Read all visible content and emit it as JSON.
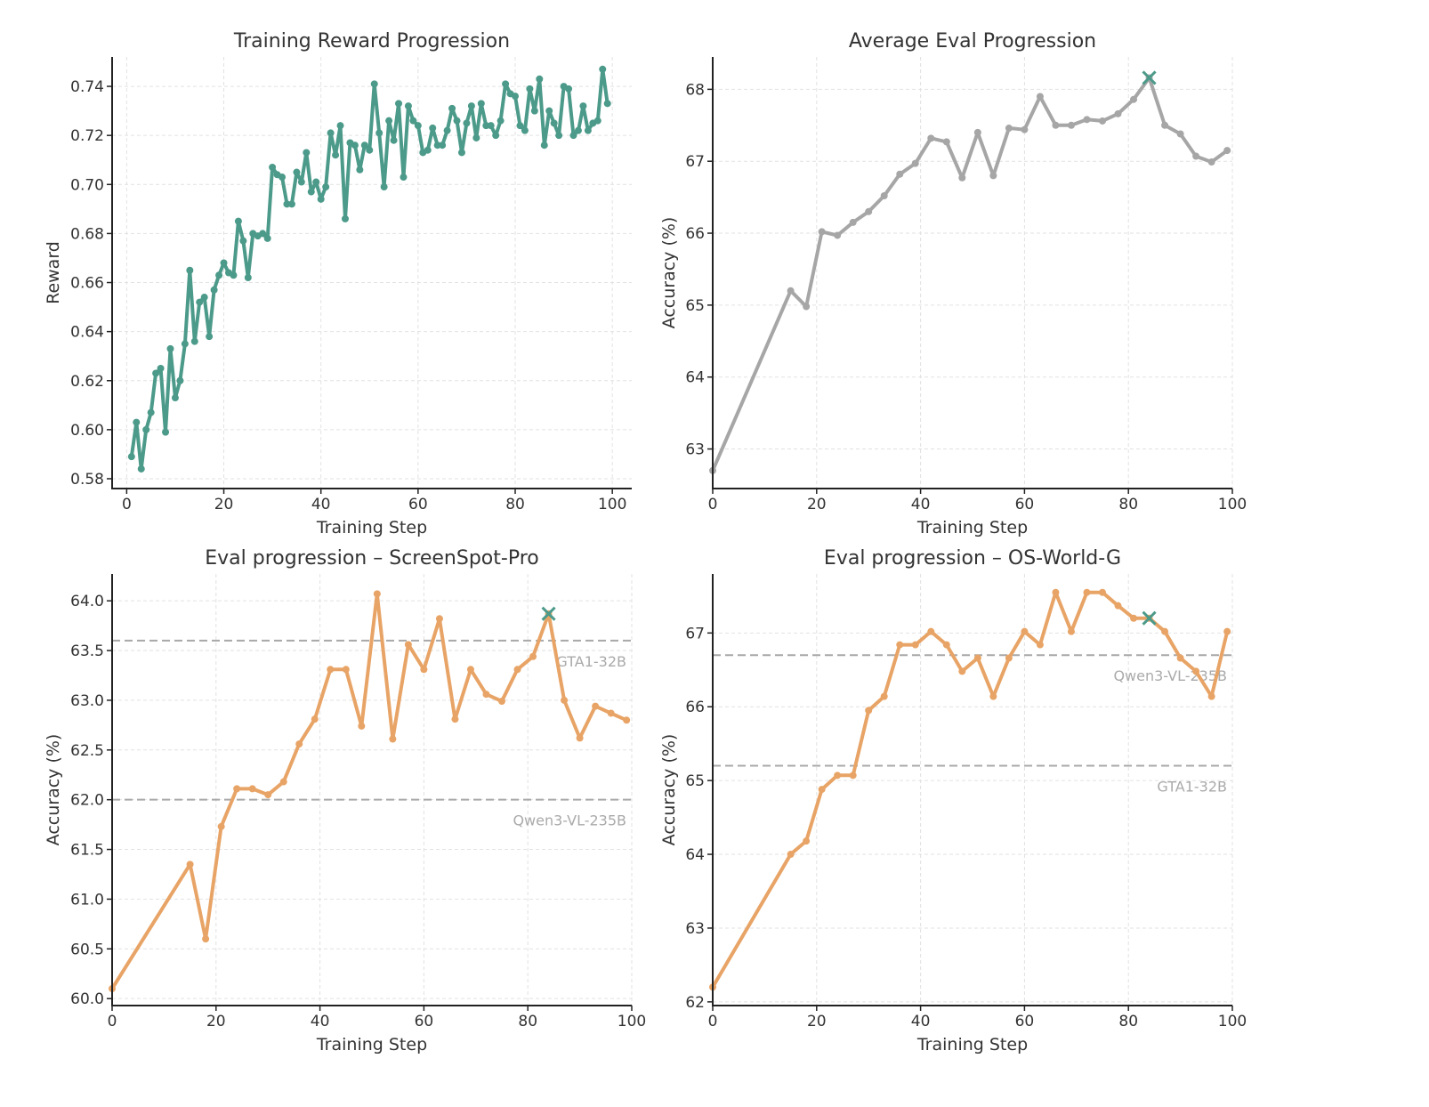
{
  "chart_data": [
    {
      "id": "reward",
      "type": "line",
      "title": "Training Reward Progression",
      "xlabel": "Training Step",
      "ylabel": "Reward",
      "xlim": [
        -3,
        104
      ],
      "ylim": [
        0.576,
        0.752
      ],
      "xticks": [
        0,
        20,
        40,
        60,
        80,
        100
      ],
      "yticks": [
        0.58,
        0.6,
        0.62,
        0.64,
        0.66,
        0.68,
        0.7,
        0.72,
        0.74
      ],
      "ytick_format": 2,
      "grid": true,
      "series": [
        {
          "name": "Reward",
          "color": "#4c9a8a",
          "x": [
            1,
            2,
            3,
            4,
            5,
            6,
            7,
            8,
            9,
            10,
            11,
            12,
            13,
            14,
            15,
            16,
            17,
            18,
            19,
            20,
            21,
            22,
            23,
            24,
            25,
            26,
            27,
            28,
            29,
            30,
            31,
            32,
            33,
            34,
            35,
            36,
            37,
            38,
            39,
            40,
            41,
            42,
            43,
            44,
            45,
            46,
            47,
            48,
            49,
            50,
            51,
            52,
            53,
            54,
            55,
            56,
            57,
            58,
            59,
            60,
            61,
            62,
            63,
            64,
            65,
            66,
            67,
            68,
            69,
            70,
            71,
            72,
            73,
            74,
            75,
            76,
            77,
            78,
            79,
            80,
            81,
            82,
            83,
            84,
            85,
            86,
            87,
            88,
            89,
            90,
            91,
            92,
            93,
            94,
            95,
            96,
            97,
            98,
            99
          ],
          "y": [
            0.589,
            0.603,
            0.584,
            0.6,
            0.607,
            0.623,
            0.625,
            0.599,
            0.633,
            0.613,
            0.62,
            0.635,
            0.665,
            0.636,
            0.652,
            0.654,
            0.638,
            0.657,
            0.663,
            0.668,
            0.664,
            0.663,
            0.685,
            0.677,
            0.662,
            0.68,
            0.679,
            0.68,
            0.678,
            0.707,
            0.704,
            0.703,
            0.692,
            0.692,
            0.705,
            0.701,
            0.713,
            0.697,
            0.701,
            0.694,
            0.699,
            0.721,
            0.712,
            0.724,
            0.686,
            0.717,
            0.716,
            0.706,
            0.716,
            0.714,
            0.741,
            0.721,
            0.699,
            0.726,
            0.718,
            0.733,
            0.703,
            0.732,
            0.726,
            0.724,
            0.713,
            0.714,
            0.723,
            0.716,
            0.716,
            0.722,
            0.731,
            0.726,
            0.713,
            0.725,
            0.732,
            0.719,
            0.733,
            0.724,
            0.724,
            0.72,
            0.726,
            0.741,
            0.737,
            0.736,
            0.724,
            0.722,
            0.739,
            0.73,
            0.743,
            0.716,
            0.73,
            0.725,
            0.72,
            0.74,
            0.739,
            0.72,
            0.722,
            0.732,
            0.722,
            0.725,
            0.726,
            0.747,
            0.733
          ]
        }
      ],
      "reference_lines": [],
      "best_marker": null
    },
    {
      "id": "avg-eval",
      "type": "line",
      "title": "Average Eval Progression",
      "xlabel": "Training Step",
      "ylabel": "Accuracy (%)",
      "xlim": [
        0,
        100
      ],
      "ylim": [
        62.45,
        68.45
      ],
      "xticks": [
        0,
        20,
        40,
        60,
        80,
        100
      ],
      "yticks": [
        63,
        64,
        65,
        66,
        67,
        68
      ],
      "ytick_format": 0,
      "grid": true,
      "series": [
        {
          "name": "Average",
          "color": "#a6a6a6",
          "x": [
            0,
            15,
            18,
            21,
            24,
            27,
            30,
            33,
            36,
            39,
            42,
            45,
            48,
            51,
            54,
            57,
            60,
            63,
            66,
            69,
            72,
            75,
            78,
            81,
            84,
            87,
            90,
            93,
            96,
            99
          ],
          "y": [
            62.7,
            65.2,
            64.98,
            66.02,
            65.97,
            66.15,
            66.3,
            66.52,
            66.82,
            66.97,
            67.32,
            67.27,
            66.77,
            67.4,
            66.8,
            67.46,
            67.44,
            67.9,
            67.5,
            67.5,
            67.58,
            67.56,
            67.66,
            67.86,
            68.16,
            67.5,
            67.38,
            67.07,
            66.99,
            67.15
          ]
        }
      ],
      "reference_lines": [],
      "best_marker": {
        "x": 84,
        "y": 68.16,
        "color": "#4c9a8a"
      }
    },
    {
      "id": "screenspot-pro",
      "type": "line",
      "title": "Eval progression – ScreenSpot-Pro",
      "xlabel": "Training Step",
      "ylabel": "Accuracy (%)",
      "xlim": [
        0,
        100
      ],
      "ylim": [
        59.93,
        64.27
      ],
      "xticks": [
        0,
        20,
        40,
        60,
        80,
        100
      ],
      "yticks": [
        60.0,
        60.5,
        61.0,
        61.5,
        62.0,
        62.5,
        63.0,
        63.5,
        64.0
      ],
      "ytick_format": 1,
      "grid": true,
      "series": [
        {
          "name": "ScreenSpot-Pro",
          "color": "#e8a466",
          "x": [
            0,
            15,
            18,
            21,
            24,
            27,
            30,
            33,
            36,
            39,
            42,
            45,
            48,
            51,
            54,
            57,
            60,
            63,
            66,
            69,
            72,
            75,
            78,
            81,
            84,
            87,
            90,
            93,
            96,
            99
          ],
          "y": [
            60.1,
            61.35,
            60.6,
            61.73,
            62.11,
            62.11,
            62.05,
            62.18,
            62.56,
            62.81,
            63.31,
            63.31,
            62.74,
            64.07,
            62.61,
            63.56,
            63.31,
            63.82,
            62.81,
            63.31,
            63.06,
            62.99,
            63.31,
            63.44,
            63.87,
            63.0,
            62.62,
            62.94,
            62.87,
            62.8
          ]
        }
      ],
      "reference_lines": [
        {
          "label": "GTA1-32B",
          "y": 63.6,
          "label_offset": "below"
        },
        {
          "label": "Qwen3-VL-235B",
          "y": 62.0,
          "label_offset": "below"
        }
      ],
      "best_marker": {
        "x": 84,
        "y": 63.87,
        "color": "#4c9a8a"
      }
    },
    {
      "id": "os-world-g",
      "type": "line",
      "title": "Eval progression – OS-World-G",
      "xlabel": "Training Step",
      "ylabel": "Accuracy (%)",
      "xlim": [
        0,
        100
      ],
      "ylim": [
        61.95,
        67.8
      ],
      "xticks": [
        0,
        20,
        40,
        60,
        80,
        100
      ],
      "yticks": [
        62,
        63,
        64,
        65,
        66,
        67
      ],
      "ytick_format": 0,
      "grid": true,
      "series": [
        {
          "name": "OS-World-G",
          "color": "#e8a466",
          "x": [
            0,
            15,
            18,
            21,
            24,
            27,
            30,
            33,
            36,
            39,
            42,
            45,
            48,
            51,
            54,
            57,
            60,
            63,
            66,
            69,
            72,
            75,
            78,
            81,
            84,
            87,
            90,
            93,
            96,
            99
          ],
          "y": [
            62.2,
            64.0,
            64.18,
            64.88,
            65.07,
            65.07,
            65.95,
            66.14,
            66.84,
            66.84,
            67.02,
            66.84,
            66.48,
            66.66,
            66.14,
            66.66,
            67.02,
            66.84,
            67.55,
            67.02,
            67.55,
            67.55,
            67.37,
            67.2,
            67.2,
            67.02,
            66.66,
            66.48,
            66.14,
            67.02
          ]
        }
      ],
      "reference_lines": [
        {
          "label": "Qwen3-VL-235B",
          "y": 66.7,
          "label_offset": "below"
        },
        {
          "label": "GTA1-32B",
          "y": 65.2,
          "label_offset": "below"
        }
      ],
      "best_marker": {
        "x": 84,
        "y": 67.2,
        "color": "#4c9a8a"
      }
    }
  ]
}
